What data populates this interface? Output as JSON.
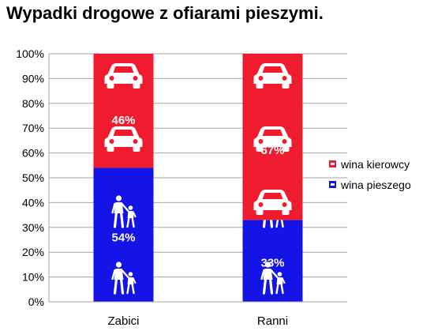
{
  "title": "Wypadki drogowe z ofiarami pieszymi.",
  "chart_data": {
    "type": "bar",
    "stacked": true,
    "percent": true,
    "categories": [
      "Zabici",
      "Ranni"
    ],
    "series": [
      {
        "name": "wina pieszego",
        "values": [
          54,
          33
        ],
        "color": "#1414e6",
        "labels": [
          "54%",
          "33%"
        ],
        "icon": "pedestrian-icon"
      },
      {
        "name": "wina kierowcy",
        "values": [
          46,
          67
        ],
        "color": "#ee1c2e",
        "labels": [
          "46%",
          "67%"
        ],
        "icon": "car-icon"
      }
    ],
    "ylim": [
      0,
      100
    ],
    "yticks": [
      0,
      10,
      20,
      30,
      40,
      50,
      60,
      70,
      80,
      90,
      100
    ],
    "ytick_labels": [
      "0%",
      "10%",
      "20%",
      "30%",
      "40%",
      "50%",
      "60%",
      "70%",
      "80%",
      "90%",
      "100%"
    ],
    "grid": true,
    "legend_position": "right",
    "legend_order": [
      "wina kierowcy",
      "wina pieszego"
    ]
  }
}
